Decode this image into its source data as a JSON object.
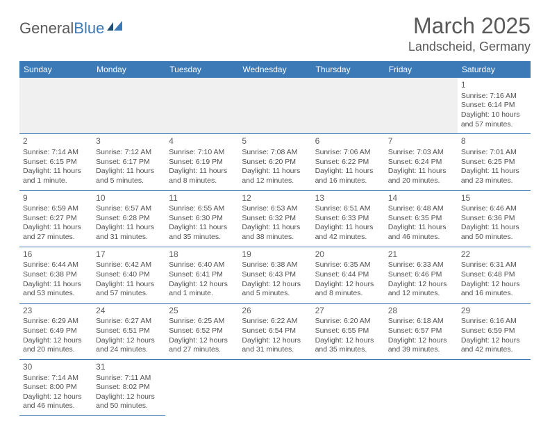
{
  "logo": {
    "part1": "General",
    "part2": "Blue",
    "color_general": "#595959",
    "color_blue": "#3b79b7"
  },
  "title": "March 2025",
  "location": "Landscheid, Germany",
  "colors": {
    "header_bg": "#3b79b7",
    "header_fg": "#ffffff",
    "rule": "#3b79b7",
    "text": "#505050",
    "blank_bg": "#f0f0f0"
  },
  "weekdays": [
    "Sunday",
    "Monday",
    "Tuesday",
    "Wednesday",
    "Thursday",
    "Friday",
    "Saturday"
  ],
  "weeks": [
    [
      null,
      null,
      null,
      null,
      null,
      null,
      {
        "n": "1",
        "sr": "Sunrise: 7:16 AM",
        "ss": "Sunset: 6:14 PM",
        "dl": "Daylight: 10 hours and 57 minutes."
      }
    ],
    [
      {
        "n": "2",
        "sr": "Sunrise: 7:14 AM",
        "ss": "Sunset: 6:15 PM",
        "dl": "Daylight: 11 hours and 1 minute."
      },
      {
        "n": "3",
        "sr": "Sunrise: 7:12 AM",
        "ss": "Sunset: 6:17 PM",
        "dl": "Daylight: 11 hours and 5 minutes."
      },
      {
        "n": "4",
        "sr": "Sunrise: 7:10 AM",
        "ss": "Sunset: 6:19 PM",
        "dl": "Daylight: 11 hours and 8 minutes."
      },
      {
        "n": "5",
        "sr": "Sunrise: 7:08 AM",
        "ss": "Sunset: 6:20 PM",
        "dl": "Daylight: 11 hours and 12 minutes."
      },
      {
        "n": "6",
        "sr": "Sunrise: 7:06 AM",
        "ss": "Sunset: 6:22 PM",
        "dl": "Daylight: 11 hours and 16 minutes."
      },
      {
        "n": "7",
        "sr": "Sunrise: 7:03 AM",
        "ss": "Sunset: 6:24 PM",
        "dl": "Daylight: 11 hours and 20 minutes."
      },
      {
        "n": "8",
        "sr": "Sunrise: 7:01 AM",
        "ss": "Sunset: 6:25 PM",
        "dl": "Daylight: 11 hours and 23 minutes."
      }
    ],
    [
      {
        "n": "9",
        "sr": "Sunrise: 6:59 AM",
        "ss": "Sunset: 6:27 PM",
        "dl": "Daylight: 11 hours and 27 minutes."
      },
      {
        "n": "10",
        "sr": "Sunrise: 6:57 AM",
        "ss": "Sunset: 6:28 PM",
        "dl": "Daylight: 11 hours and 31 minutes."
      },
      {
        "n": "11",
        "sr": "Sunrise: 6:55 AM",
        "ss": "Sunset: 6:30 PM",
        "dl": "Daylight: 11 hours and 35 minutes."
      },
      {
        "n": "12",
        "sr": "Sunrise: 6:53 AM",
        "ss": "Sunset: 6:32 PM",
        "dl": "Daylight: 11 hours and 38 minutes."
      },
      {
        "n": "13",
        "sr": "Sunrise: 6:51 AM",
        "ss": "Sunset: 6:33 PM",
        "dl": "Daylight: 11 hours and 42 minutes."
      },
      {
        "n": "14",
        "sr": "Sunrise: 6:48 AM",
        "ss": "Sunset: 6:35 PM",
        "dl": "Daylight: 11 hours and 46 minutes."
      },
      {
        "n": "15",
        "sr": "Sunrise: 6:46 AM",
        "ss": "Sunset: 6:36 PM",
        "dl": "Daylight: 11 hours and 50 minutes."
      }
    ],
    [
      {
        "n": "16",
        "sr": "Sunrise: 6:44 AM",
        "ss": "Sunset: 6:38 PM",
        "dl": "Daylight: 11 hours and 53 minutes."
      },
      {
        "n": "17",
        "sr": "Sunrise: 6:42 AM",
        "ss": "Sunset: 6:40 PM",
        "dl": "Daylight: 11 hours and 57 minutes."
      },
      {
        "n": "18",
        "sr": "Sunrise: 6:40 AM",
        "ss": "Sunset: 6:41 PM",
        "dl": "Daylight: 12 hours and 1 minute."
      },
      {
        "n": "19",
        "sr": "Sunrise: 6:38 AM",
        "ss": "Sunset: 6:43 PM",
        "dl": "Daylight: 12 hours and 5 minutes."
      },
      {
        "n": "20",
        "sr": "Sunrise: 6:35 AM",
        "ss": "Sunset: 6:44 PM",
        "dl": "Daylight: 12 hours and 8 minutes."
      },
      {
        "n": "21",
        "sr": "Sunrise: 6:33 AM",
        "ss": "Sunset: 6:46 PM",
        "dl": "Daylight: 12 hours and 12 minutes."
      },
      {
        "n": "22",
        "sr": "Sunrise: 6:31 AM",
        "ss": "Sunset: 6:48 PM",
        "dl": "Daylight: 12 hours and 16 minutes."
      }
    ],
    [
      {
        "n": "23",
        "sr": "Sunrise: 6:29 AM",
        "ss": "Sunset: 6:49 PM",
        "dl": "Daylight: 12 hours and 20 minutes."
      },
      {
        "n": "24",
        "sr": "Sunrise: 6:27 AM",
        "ss": "Sunset: 6:51 PM",
        "dl": "Daylight: 12 hours and 24 minutes."
      },
      {
        "n": "25",
        "sr": "Sunrise: 6:25 AM",
        "ss": "Sunset: 6:52 PM",
        "dl": "Daylight: 12 hours and 27 minutes."
      },
      {
        "n": "26",
        "sr": "Sunrise: 6:22 AM",
        "ss": "Sunset: 6:54 PM",
        "dl": "Daylight: 12 hours and 31 minutes."
      },
      {
        "n": "27",
        "sr": "Sunrise: 6:20 AM",
        "ss": "Sunset: 6:55 PM",
        "dl": "Daylight: 12 hours and 35 minutes."
      },
      {
        "n": "28",
        "sr": "Sunrise: 6:18 AM",
        "ss": "Sunset: 6:57 PM",
        "dl": "Daylight: 12 hours and 39 minutes."
      },
      {
        "n": "29",
        "sr": "Sunrise: 6:16 AM",
        "ss": "Sunset: 6:59 PM",
        "dl": "Daylight: 12 hours and 42 minutes."
      }
    ],
    [
      {
        "n": "30",
        "sr": "Sunrise: 7:14 AM",
        "ss": "Sunset: 8:00 PM",
        "dl": "Daylight: 12 hours and 46 minutes."
      },
      {
        "n": "31",
        "sr": "Sunrise: 7:11 AM",
        "ss": "Sunset: 8:02 PM",
        "dl": "Daylight: 12 hours and 50 minutes."
      },
      null,
      null,
      null,
      null,
      null
    ]
  ]
}
